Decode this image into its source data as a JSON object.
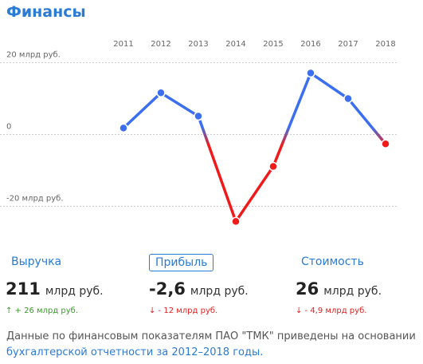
{
  "title": "Финансы",
  "chart_data": {
    "type": "line",
    "categories": [
      "2011",
      "2012",
      "2013",
      "2014",
      "2015",
      "2016",
      "2017",
      "2018"
    ],
    "values": [
      1.8,
      11.6,
      5.1,
      -24.2,
      -8.9,
      17.1,
      10,
      -2.6
    ],
    "ylim": [
      -27,
      23
    ],
    "yticks": [
      {
        "value": 20,
        "label": "20 млрд руб."
      },
      0,
      {
        "value": -20,
        "label": "-20 млрд руб."
      }
    ],
    "grid": true,
    "color_positive": "#3b6ff0",
    "color_negative": "#f01a1a"
  },
  "metrics": [
    {
      "label": "Выручка",
      "value": "211",
      "unit": "млрд руб.",
      "change": "↑ + 26 млрд руб.",
      "direction": "up"
    },
    {
      "label": "Прибыль",
      "value": "-2,6",
      "unit": "млрд руб.",
      "change": "↓ - 12 млрд руб.",
      "direction": "down"
    },
    {
      "label": "Стоимость",
      "value": "26",
      "unit": "млрд руб.",
      "change": "↓ - 4,9 млрд руб.",
      "direction": "down"
    }
  ],
  "note": {
    "text": "Данные по финансовым показателям ПАО \"ТМК\" приведены на основании ",
    "link": "бухгалтерской отчетности за 2012–2018 годы."
  }
}
